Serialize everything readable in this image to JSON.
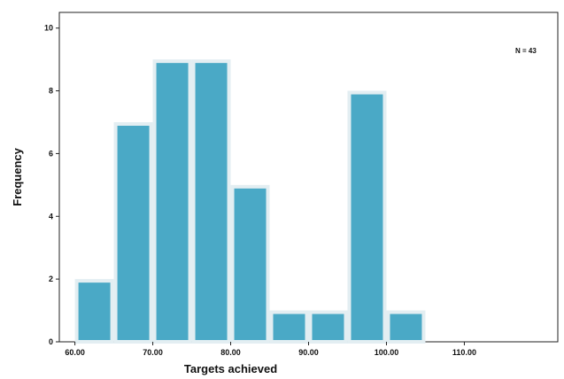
{
  "chart_data": {
    "type": "bar",
    "subtype": "histogram",
    "xlabel": "Targets achieved",
    "ylabel": "Frequency",
    "annotation": "N = 43",
    "bin_width": 5,
    "bins": [
      {
        "start": 60,
        "end": 65,
        "count": 2
      },
      {
        "start": 65,
        "end": 70,
        "count": 7
      },
      {
        "start": 70,
        "end": 75,
        "count": 9
      },
      {
        "start": 75,
        "end": 80,
        "count": 9
      },
      {
        "start": 80,
        "end": 85,
        "count": 5
      },
      {
        "start": 85,
        "end": 90,
        "count": 1
      },
      {
        "start": 90,
        "end": 95,
        "count": 1
      },
      {
        "start": 95,
        "end": 100,
        "count": 8
      },
      {
        "start": 100,
        "end": 105,
        "count": 1
      }
    ],
    "x_ticks": [
      "60.00",
      "70.00",
      "80.00",
      "90.00",
      "100.00",
      "110.00"
    ],
    "x_tick_values": [
      60,
      70,
      80,
      90,
      100,
      110
    ],
    "y_ticks": [
      "0",
      "2",
      "4",
      "6",
      "8",
      "10"
    ],
    "y_tick_values": [
      0,
      2,
      4,
      6,
      8,
      10
    ],
    "xlim": [
      58,
      122
    ],
    "ylim": [
      0,
      10.5
    ],
    "grid": false,
    "legend": "none",
    "colors": {
      "bar_fill": "#4aa9c6",
      "bar_edge": "#e3eef2"
    }
  }
}
